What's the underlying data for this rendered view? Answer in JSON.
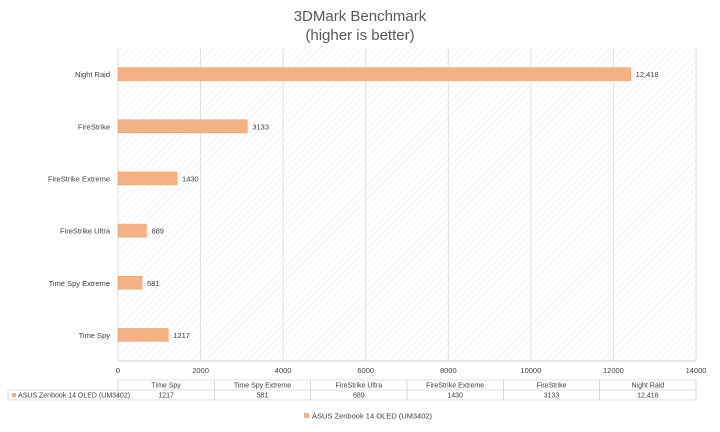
{
  "chart_data": {
    "type": "bar",
    "orientation": "horizontal",
    "title": "3DMark Benchmark",
    "subtitle": "(higher is better)",
    "categories": [
      "Time Spy",
      "Time Spy Extreme",
      "FireStrike Ultra",
      "FireStrike Extreme",
      "FireStrike",
      "Night Raid"
    ],
    "series": [
      {
        "name": "ASUS Zenbook 14 OLED (UM3402)",
        "values": [
          1217,
          581,
          689,
          1430,
          3133,
          12418
        ],
        "labels": [
          "1217",
          "581",
          "689",
          "1430",
          "3133",
          "12,418"
        ]
      }
    ],
    "xlim": [
      0,
      14000
    ],
    "xticks": [
      "0",
      "2000",
      "4000",
      "6000",
      "8000",
      "10000",
      "12000",
      "14000"
    ],
    "grid": true,
    "legend_position": "bottom",
    "data_table": true,
    "colors": {
      "bar": "#f4b183",
      "bar_edge": "#e8a070",
      "grid": "#d9d9d9",
      "hatch": "#e4e4e4"
    }
  }
}
